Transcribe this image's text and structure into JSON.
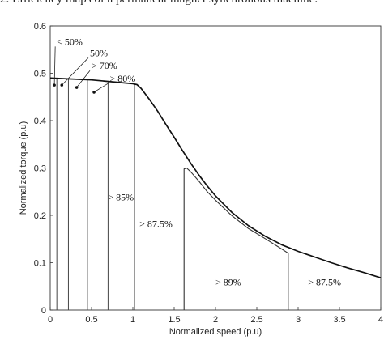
{
  "caption": "2. Efficiency maps of a permanent magnet synchronous machine.",
  "chart_data": {
    "type": "line",
    "title": "",
    "xlabel": "Normalized speed (p.u)",
    "ylabel": "Normalized torque (p.u)",
    "xlim": [
      0,
      4
    ],
    "ylim": [
      0,
      0.6
    ],
    "xticks": [
      0,
      0.5,
      1,
      1.5,
      2,
      2.5,
      3,
      3.5,
      4
    ],
    "xtick_labels": [
      "0",
      "0.5",
      "1",
      "1.5",
      "2",
      "2.5",
      "3",
      "3.5",
      "4"
    ],
    "yticks": [
      0,
      0.1,
      0.2,
      0.3,
      0.4,
      0.5,
      0.6
    ],
    "ytick_labels": [
      "0",
      "0.1",
      "0.2",
      "0.3",
      "0.4",
      "0.5",
      "0.6"
    ],
    "grid": false,
    "series": [
      {
        "name": "",
        "role": "max-torque-envelope",
        "x": [
          0,
          0.5,
          1.0,
          1.05,
          1.1,
          1.2,
          1.3,
          1.4,
          1.5,
          1.6,
          1.7,
          1.8,
          1.9,
          2.0,
          2.2,
          2.4,
          2.6,
          2.8,
          3.0,
          3.2,
          3.4,
          3.6,
          3.8,
          4.0
        ],
        "y": [
          0.49,
          0.486,
          0.478,
          0.476,
          0.468,
          0.445,
          0.42,
          0.392,
          0.365,
          0.337,
          0.31,
          0.285,
          0.262,
          0.241,
          0.206,
          0.178,
          0.156,
          0.138,
          0.124,
          0.112,
          0.1,
          0.089,
          0.079,
          0.068
        ]
      },
      {
        "name": "",
        "role": "efficiency-boundary-89",
        "x": [
          1.62,
          1.62,
          1.65,
          1.7,
          1.8,
          1.9,
          2.0,
          2.2,
          2.4,
          2.6,
          2.8,
          2.88,
          2.88
        ],
        "y": [
          0,
          0.298,
          0.3,
          0.292,
          0.272,
          0.25,
          0.232,
          0.199,
          0.172,
          0.151,
          0.129,
          0.12,
          0
        ]
      }
    ],
    "vertical_boundaries": [
      {
        "x": 0.08,
        "y_top": 0.49
      },
      {
        "x": 0.22,
        "y_top": 0.488
      },
      {
        "x": 0.45,
        "y_top": 0.487
      },
      {
        "x": 0.7,
        "y_top": 0.483
      },
      {
        "x": 1.02,
        "y_top": 0.478
      }
    ],
    "annotations": [
      {
        "text": "< 50%",
        "x": 0.08,
        "y": 0.56,
        "point": [
          0.05,
          0.475
        ]
      },
      {
        "text": "50%",
        "x": 0.48,
        "y": 0.536,
        "point": [
          0.14,
          0.475
        ]
      },
      {
        "text": "> 70%",
        "x": 0.5,
        "y": 0.509,
        "point": [
          0.32,
          0.47
        ]
      },
      {
        "text": "> 80%",
        "x": 0.72,
        "y": 0.482,
        "point": [
          0.53,
          0.46
        ]
      },
      {
        "text": "> 85%",
        "x": 0.7,
        "y": 0.232
      },
      {
        "text": "> 87.5%",
        "x": 1.08,
        "y": 0.175
      },
      {
        "text": "> 89%",
        "x": 2.0,
        "y": 0.052
      },
      {
        "text": "> 87.5%",
        "x": 3.12,
        "y": 0.052
      }
    ]
  }
}
